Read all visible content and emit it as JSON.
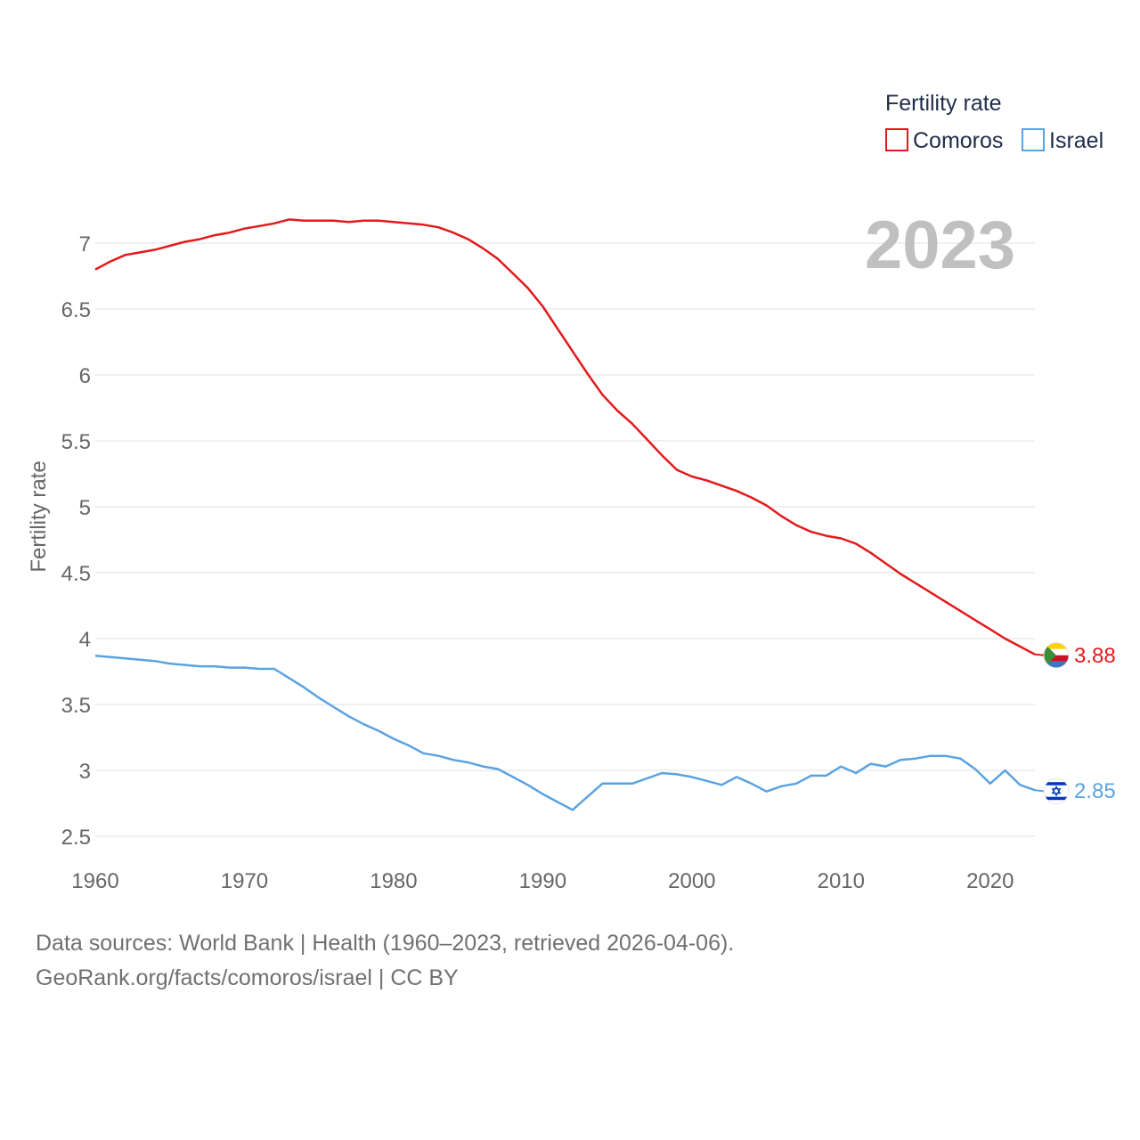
{
  "chart_data": {
    "type": "line",
    "ylabel": "Fertility rate",
    "xlabel": "",
    "xlim": [
      1960,
      2023
    ],
    "ylim": [
      2.5,
      7.3
    ],
    "x_ticks": [
      1960,
      1970,
      1980,
      1990,
      2000,
      2010,
      2020
    ],
    "y_ticks": [
      2.5,
      3,
      3.5,
      4,
      4.5,
      5,
      5.5,
      6,
      6.5,
      7
    ],
    "x_tick_labels": [
      "1960",
      "1970",
      "1980",
      "1990",
      "2000",
      "2010",
      "2020"
    ],
    "y_tick_labels": [
      "2.5",
      "3",
      "3.5",
      "4",
      "4.5",
      "5",
      "5.5",
      "6",
      "6.5",
      "7"
    ],
    "legend": {
      "title": "Fertility rate",
      "placement": "top-right"
    },
    "year_label": "2023",
    "x": [
      1960,
      1961,
      1962,
      1963,
      1964,
      1965,
      1966,
      1967,
      1968,
      1969,
      1970,
      1971,
      1972,
      1973,
      1974,
      1975,
      1976,
      1977,
      1978,
      1979,
      1980,
      1981,
      1982,
      1983,
      1984,
      1985,
      1986,
      1987,
      1988,
      1989,
      1990,
      1991,
      1992,
      1993,
      1994,
      1995,
      1996,
      1997,
      1998,
      1999,
      2000,
      2001,
      2002,
      2003,
      2004,
      2005,
      2006,
      2007,
      2008,
      2009,
      2010,
      2011,
      2012,
      2013,
      2014,
      2015,
      2016,
      2017,
      2018,
      2019,
      2020,
      2021,
      2022,
      2023
    ],
    "series": [
      {
        "name": "Comoros",
        "color": "#e31a1c",
        "end_label": "3.88",
        "flag": "comoros-flag",
        "values": [
          6.8,
          6.86,
          6.91,
          6.93,
          6.95,
          6.98,
          7.01,
          7.03,
          7.06,
          7.08,
          7.11,
          7.13,
          7.15,
          7.18,
          7.17,
          7.17,
          7.17,
          7.16,
          7.17,
          7.17,
          7.16,
          7.15,
          7.14,
          7.12,
          7.08,
          7.03,
          6.96,
          6.88,
          6.77,
          6.66,
          6.52,
          6.35,
          6.18,
          6.01,
          5.85,
          5.73,
          5.63,
          5.51,
          5.39,
          5.28,
          5.23,
          5.2,
          5.16,
          5.12,
          5.07,
          5.01,
          4.93,
          4.86,
          4.81,
          4.78,
          4.76,
          4.72,
          4.65,
          4.57,
          4.49,
          4.42,
          4.35,
          4.28,
          4.21,
          4.14,
          4.07,
          4.0,
          3.94,
          3.88
        ]
      },
      {
        "name": "Israel",
        "color": "#5ba3e0",
        "end_label": "2.85",
        "flag": "israel-flag",
        "values": [
          3.87,
          3.86,
          3.85,
          3.84,
          3.83,
          3.81,
          3.8,
          3.79,
          3.79,
          3.78,
          3.78,
          3.77,
          3.77,
          3.7,
          3.63,
          3.55,
          3.48,
          3.41,
          3.35,
          3.3,
          3.24,
          3.19,
          3.13,
          3.11,
          3.08,
          3.06,
          3.03,
          3.01,
          2.95,
          2.89,
          2.82,
          2.76,
          2.7,
          2.8,
          2.9,
          2.9,
          2.9,
          2.94,
          2.98,
          2.97,
          2.95,
          2.92,
          2.89,
          2.95,
          2.9,
          2.84,
          2.88,
          2.9,
          2.96,
          2.96,
          3.03,
          2.98,
          3.05,
          3.03,
          3.08,
          3.09,
          3.11,
          3.11,
          3.09,
          3.01,
          2.9,
          3.0,
          2.89,
          2.85
        ]
      }
    ]
  },
  "footer": {
    "line1": "Data sources: World Bank | Health (1960–2023, retrieved 2026-04-06).",
    "line2": "GeoRank.org/facts/comoros/israel | CC BY"
  }
}
